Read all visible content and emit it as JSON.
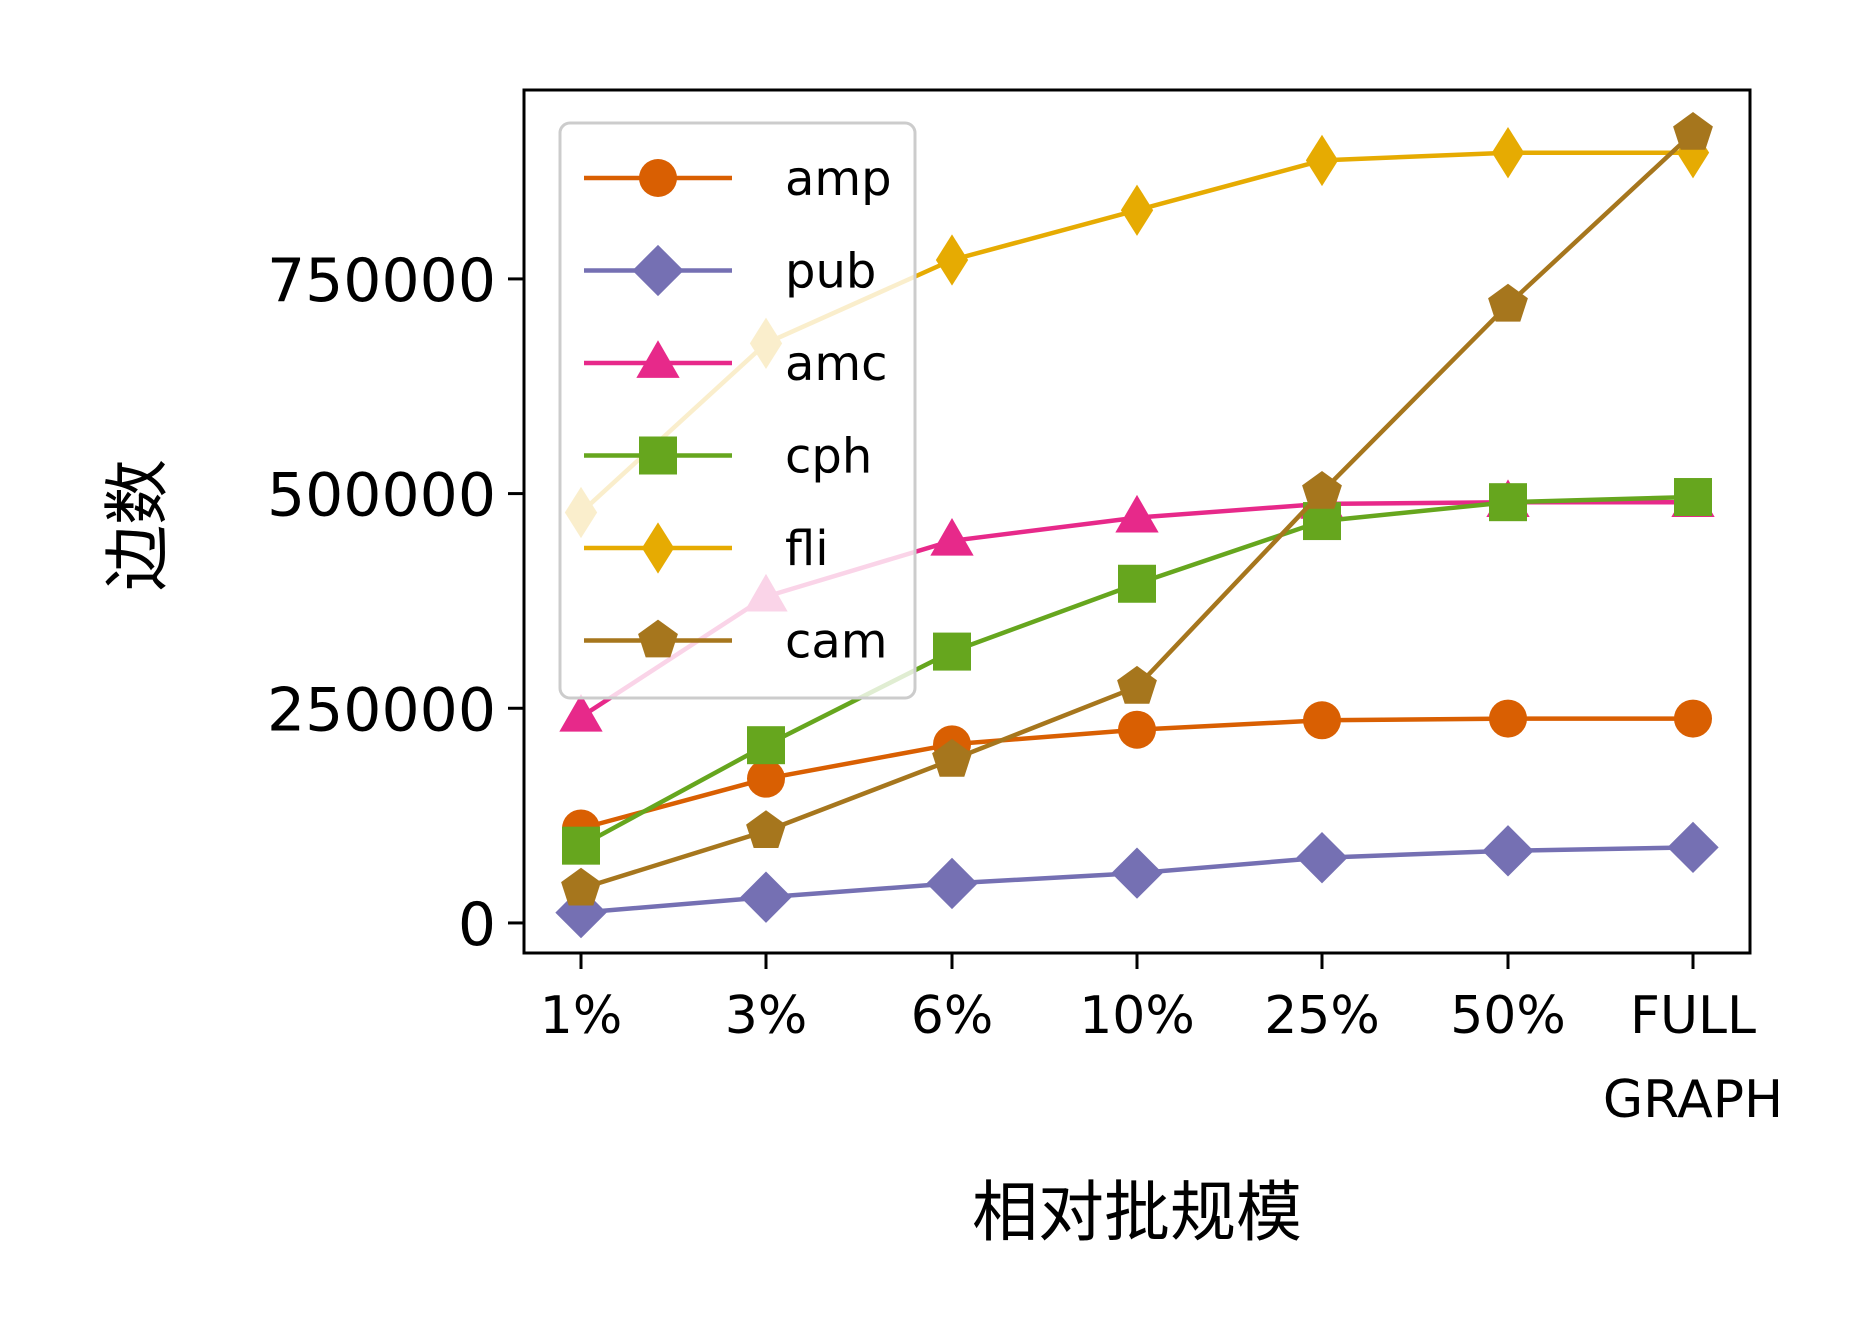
{
  "chart_data": {
    "type": "line",
    "xlabel": "相对批规模",
    "ylabel": "边数",
    "categories": [
      "1%",
      "3%",
      "6%",
      "10%",
      "25%",
      "50%",
      "FULL\nGRAPH"
    ],
    "yticks": [
      0,
      250000,
      500000,
      750000
    ],
    "ylim": [
      -35000,
      970000
    ],
    "grid": false,
    "legend_position": "top-left",
    "series": [
      {
        "name": "amp",
        "color": "#d95f02",
        "marker": "circle",
        "values": [
          110000,
          168000,
          208000,
          225000,
          236000,
          238000,
          238000
        ]
      },
      {
        "name": "pub",
        "color": "#7570b3",
        "marker": "diamond",
        "values": [
          12000,
          30000,
          46000,
          58000,
          76000,
          84000,
          88000
        ]
      },
      {
        "name": "amc",
        "color": "#e7298a",
        "marker": "triangle",
        "values": [
          240000,
          380000,
          445000,
          472000,
          488000,
          490000,
          490000
        ]
      },
      {
        "name": "cph",
        "color": "#66a61e",
        "marker": "square",
        "values": [
          90000,
          207000,
          316000,
          395000,
          468000,
          490000,
          496000
        ]
      },
      {
        "name": "fli",
        "color": "#e6ab02",
        "marker": "thin-diamond",
        "values": [
          478000,
          675000,
          772000,
          830000,
          888000,
          897000,
          897000
        ]
      },
      {
        "name": "cam",
        "color": "#a6761d",
        "marker": "pentagon",
        "values": [
          40000,
          107000,
          190000,
          275000,
          502000,
          720000,
          920000
        ]
      }
    ]
  }
}
